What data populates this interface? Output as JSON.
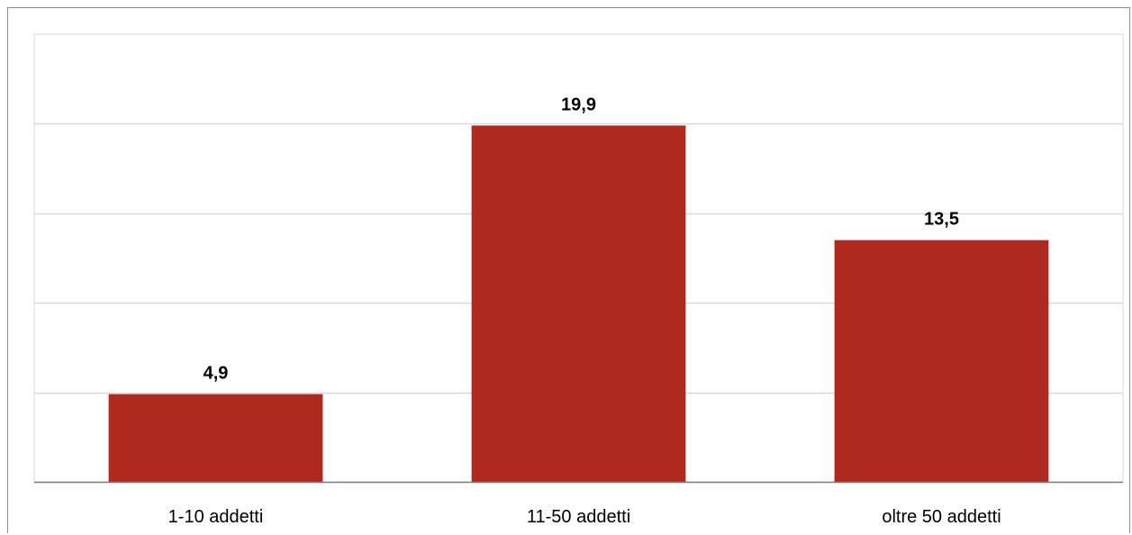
{
  "chart_data": {
    "type": "bar",
    "categories": [
      "1-10 addetti",
      "11-50 addetti",
      "oltre 50 addetti"
    ],
    "values": [
      4.9,
      19.9,
      13.5
    ],
    "value_labels": [
      "4,9",
      "19,9",
      "13,5"
    ],
    "title": "",
    "xlabel": "",
    "ylabel": "",
    "ylim": [
      0,
      25
    ],
    "grid": true,
    "bar_color": "#b0291f",
    "grid_color": "#d9d9d9",
    "axis_color": "#7f7f7f"
  }
}
